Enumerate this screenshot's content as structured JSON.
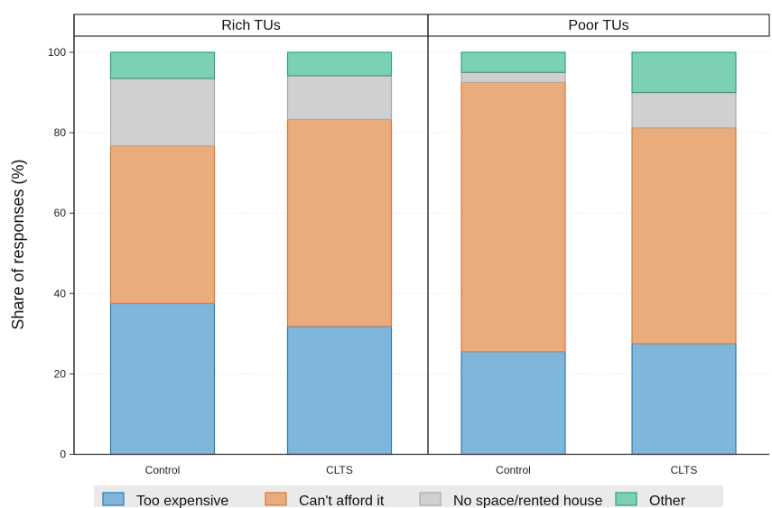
{
  "chart_data": {
    "type": "bar",
    "stacked": true,
    "ylabel": "Share of responses (%)",
    "xlabel": "",
    "ylim": [
      0,
      100
    ],
    "yticks": [
      0,
      20,
      40,
      60,
      80,
      100
    ],
    "grid": "horizontal dotted",
    "legend_position": "bottom",
    "series": [
      {
        "name": "Too expensive",
        "color": "#7fb6d9",
        "edge": "#2b7bba"
      },
      {
        "name": "Can't afford it",
        "color": "#e9ad7d",
        "edge": "#d9773a"
      },
      {
        "name": "No space/rented house",
        "color": "#d0d0d0",
        "edge": "#a8a8a8"
      },
      {
        "name": "Other",
        "color": "#7dcfb6",
        "edge": "#2ea37a"
      }
    ],
    "panels": [
      {
        "title": "Rich TUs",
        "categories": [
          "Control",
          "CLTS"
        ],
        "values": [
          [
            37.5,
            39.2,
            16.8,
            6.5
          ],
          [
            31.8,
            51.5,
            10.9,
            5.8
          ]
        ]
      },
      {
        "title": "Poor TUs",
        "categories": [
          "Control",
          "CLTS"
        ],
        "values": [
          [
            25.5,
            67.0,
            2.5,
            5.0
          ],
          [
            27.5,
            53.7,
            8.8,
            10.0
          ]
        ]
      }
    ]
  }
}
